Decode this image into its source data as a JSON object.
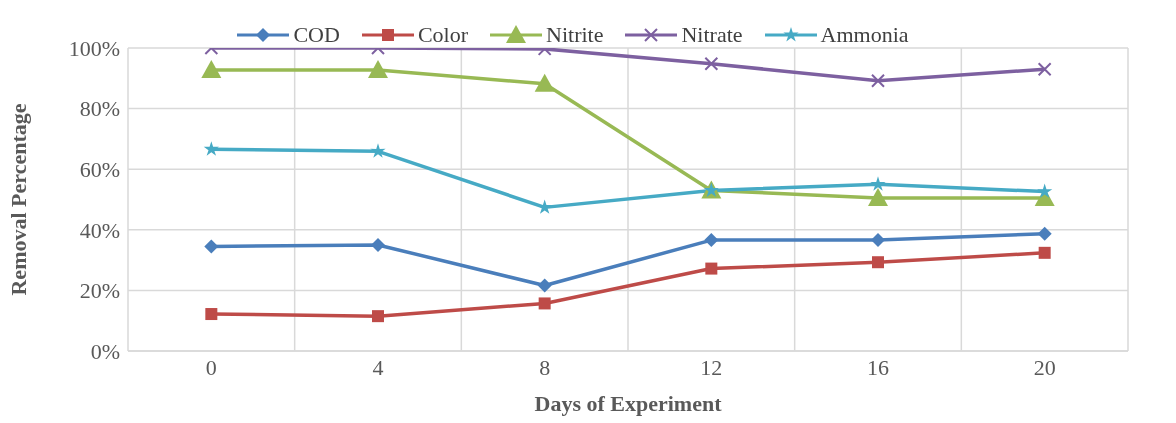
{
  "chart_data": {
    "type": "line",
    "xlabel": "Days of Experiment",
    "ylabel": "Removal Percentage",
    "categories": [
      "0",
      "4",
      "8",
      "12",
      "16",
      "20"
    ],
    "series": [
      {
        "name": "COD",
        "color": "#4a7ebb",
        "marker": "diamond",
        "values": [
          34.5,
          35,
          21.6,
          36.6,
          36.6,
          38.7
        ]
      },
      {
        "name": "Color",
        "color": "#be4b48",
        "marker": "square",
        "values": [
          12.2,
          11.5,
          15.7,
          27.2,
          29.3,
          32.4
        ]
      },
      {
        "name": "Nitrite",
        "color": "#98b954",
        "marker": "triangle",
        "values": [
          92.7,
          92.7,
          88.2,
          53,
          50.5,
          50.5
        ]
      },
      {
        "name": "Nitrate",
        "color": "#7d60a0",
        "marker": "cross",
        "values": [
          100,
          100,
          99.7,
          94.8,
          89.2,
          93
        ]
      },
      {
        "name": "Ammonia",
        "color": "#46aac5",
        "marker": "star",
        "values": [
          66.6,
          65.9,
          47.4,
          53,
          55,
          52.6
        ]
      }
    ],
    "ylim": [
      0,
      100
    ],
    "yticks": [
      {
        "value": 0,
        "label": "0%"
      },
      {
        "value": 20,
        "label": "20%"
      },
      {
        "value": 40,
        "label": "40%"
      },
      {
        "value": 60,
        "label": "60%"
      },
      {
        "value": 80,
        "label": "80%"
      },
      {
        "value": 100,
        "label": "100%"
      }
    ],
    "grid": true,
    "legend": "top",
    "line_style": "solid"
  }
}
